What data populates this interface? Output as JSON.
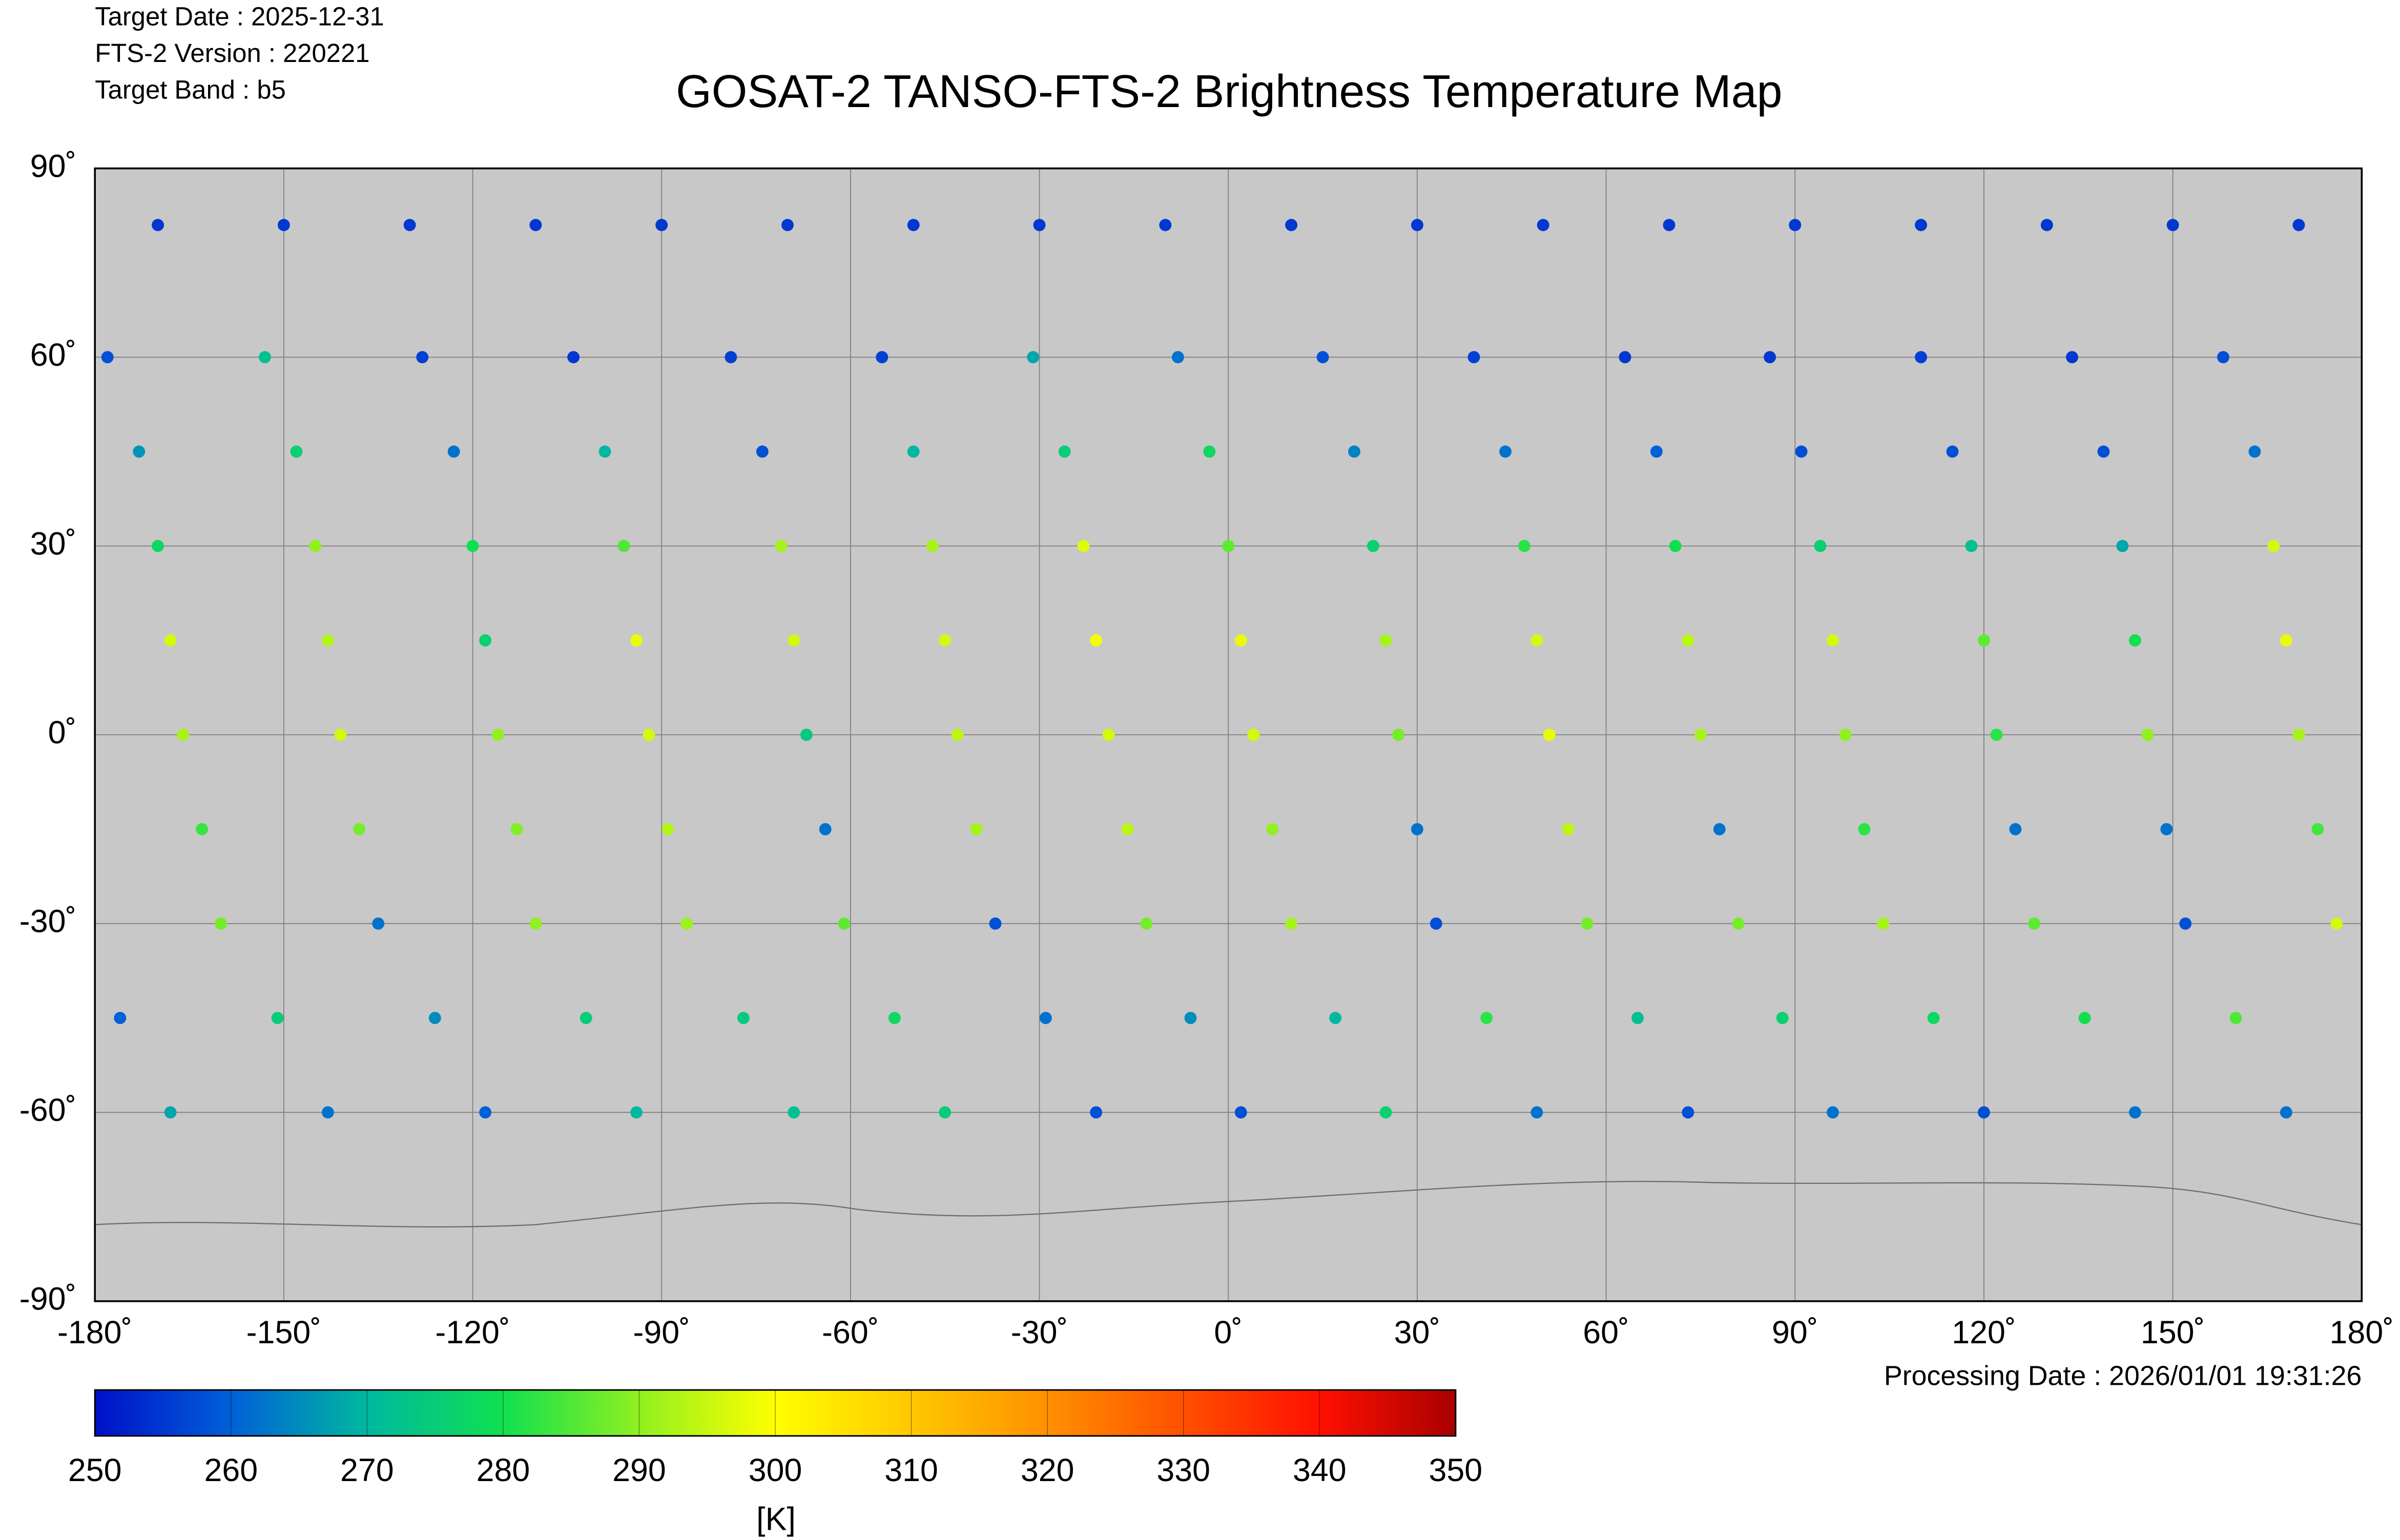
{
  "chart_data": {
    "type": "map",
    "header": [
      "Target Date   : 2025-12-31",
      "FTS-2 Version : 220221",
      "Target Band   : b5"
    ],
    "title": "GOSAT-2 TANSO-FTS-2 Brightness Temperature Map",
    "processing_date": "Processing Date : 2026/01/01 19:31:26",
    "xlim": [
      -180,
      180
    ],
    "ylim": [
      -90,
      90
    ],
    "xticks": [
      {
        "value": -180,
        "label": "-180˚"
      },
      {
        "value": -150,
        "label": "-150˚"
      },
      {
        "value": -120,
        "label": "-120˚"
      },
      {
        "value": -90,
        "label": "-90˚"
      },
      {
        "value": -60,
        "label": "-60˚"
      },
      {
        "value": -30,
        "label": "-30˚"
      },
      {
        "value": 0,
        "label": "0˚"
      },
      {
        "value": 30,
        "label": "30˚"
      },
      {
        "value": 60,
        "label": "60˚"
      },
      {
        "value": 90,
        "label": "90˚"
      },
      {
        "value": 120,
        "label": "120˚"
      },
      {
        "value": 150,
        "label": "150˚"
      },
      {
        "value": 180,
        "label": "180˚"
      }
    ],
    "yticks": [
      {
        "value": -90,
        "label": "-90˚"
      },
      {
        "value": -60,
        "label": "-60˚"
      },
      {
        "value": -30,
        "label": "-30˚"
      },
      {
        "value": 0,
        "label": "0˚"
      },
      {
        "value": 30,
        "label": "30˚"
      },
      {
        "value": 60,
        "label": "60˚"
      },
      {
        "value": 90,
        "label": "90˚"
      }
    ],
    "grid": true,
    "colorbar": {
      "lim": [
        250,
        350
      ],
      "ticks": [
        250,
        260,
        270,
        280,
        290,
        300,
        310,
        320,
        330,
        340,
        350
      ],
      "colors": [
        "#0010c8",
        "#0060d8",
        "#00b8a0",
        "#10e050",
        "#90f020",
        "#ffff00",
        "#ffc800",
        "#ff9000",
        "#ff5000",
        "#ff1000",
        "#a80000"
      ],
      "unit": "[K]"
    },
    "polar": {
      "lon": [
        -170,
        -150,
        -130,
        -110,
        -90,
        -70,
        -50,
        -30,
        -10,
        10,
        30,
        50,
        70,
        90,
        110,
        130,
        150,
        170
      ],
      "lat": [
        81,
        81,
        81,
        81,
        81,
        81,
        81,
        81,
        81,
        81,
        81,
        81,
        81,
        81,
        81,
        81,
        81,
        81
      ],
      "values": [
        255,
        255,
        255,
        255,
        255,
        255,
        255,
        255,
        255,
        255,
        255,
        255,
        255,
        255,
        255,
        255,
        255,
        255
      ]
    },
    "tracks": [
      {
        "lon": [
          -178,
          -173,
          -170,
          -168,
          -166,
          -163,
          -160,
          -176,
          -168
        ],
        "lat": [
          60,
          45,
          30,
          15,
          0,
          -15,
          -30,
          -45,
          -60
        ],
        "values": [
          258,
          266,
          278,
          296,
          292,
          283,
          288,
          260,
          268
        ]
      },
      {
        "lon": [
          -153,
          -148,
          -145,
          -143,
          -141,
          -138,
          -135,
          -151,
          -143
        ],
        "lat": [
          60,
          45,
          30,
          15,
          0,
          -15,
          -30,
          -45,
          -60
        ],
        "values": [
          272,
          276,
          290,
          293,
          296,
          288,
          262,
          275,
          262
        ]
      },
      {
        "lon": [
          -128,
          -123,
          -120,
          -118,
          -116,
          -113,
          -110,
          -126,
          -118
        ],
        "lat": [
          60,
          45,
          30,
          15,
          0,
          -15,
          -30,
          -45,
          -60
        ],
        "values": [
          256,
          262,
          280,
          276,
          290,
          289,
          290,
          265,
          260
        ]
      },
      {
        "lon": [
          -104,
          -99,
          -96,
          -94,
          -92,
          -89,
          -86,
          -102,
          -94
        ],
        "lat": [
          60,
          45,
          30,
          15,
          0,
          -15,
          -30,
          -45,
          -60
        ],
        "values": [
          255,
          270,
          285,
          298,
          296,
          293,
          291,
          275,
          270
        ]
      },
      {
        "lon": [
          -79,
          -74,
          -71,
          -69,
          -67,
          -64,
          -61,
          -77,
          -69
        ],
        "lat": [
          60,
          45,
          30,
          15,
          0,
          -15,
          -30,
          -45,
          -60
        ],
        "values": [
          256,
          258,
          292,
          296,
          274,
          262,
          286,
          274,
          272
        ]
      },
      {
        "lon": [
          -55,
          -50,
          -47,
          -45,
          -43,
          -40,
          -37,
          -53,
          -45
        ],
        "lat": [
          60,
          45,
          30,
          15,
          0,
          -15,
          -30,
          -45,
          -60
        ],
        "values": [
          256,
          270,
          292,
          296,
          294,
          292,
          258,
          278,
          275
        ]
      },
      {
        "lon": [
          -31,
          -26,
          -23,
          -21,
          -19,
          -16,
          -13,
          -29,
          -21
        ],
        "lat": [
          60,
          45,
          30,
          15,
          0,
          -15,
          -30,
          -45,
          -60
        ],
        "values": [
          268,
          275,
          297,
          299,
          296,
          294,
          288,
          262,
          258
        ]
      },
      {
        "lon": [
          -8,
          -3,
          0,
          2,
          4,
          7,
          10,
          -6,
          2
        ],
        "lat": [
          60,
          45,
          30,
          15,
          0,
          -15,
          -30,
          -45,
          -60
        ],
        "values": [
          262,
          278,
          286,
          298,
          296,
          290,
          292,
          265,
          258
        ]
      },
      {
        "lon": [
          15,
          20,
          23,
          25,
          27,
          30,
          33,
          17,
          25
        ],
        "lat": [
          60,
          45,
          30,
          15,
          0,
          -15,
          -30,
          -45,
          -60
        ],
        "values": [
          258,
          264,
          276,
          292,
          288,
          262,
          258,
          270,
          276
        ]
      },
      {
        "lon": [
          39,
          44,
          47,
          49,
          51,
          54,
          57,
          41,
          49
        ],
        "lat": [
          60,
          45,
          30,
          15,
          0,
          -15,
          -30,
          -45,
          -60
        ],
        "values": [
          256,
          262,
          282,
          296,
          298,
          294,
          288,
          282,
          262
        ]
      },
      {
        "lon": [
          63,
          68,
          71,
          73,
          75,
          78,
          81,
          65,
          73
        ],
        "lat": [
          60,
          45,
          30,
          15,
          0,
          -15,
          -30,
          -45,
          -60
        ],
        "values": [
          255,
          260,
          280,
          294,
          292,
          262,
          288,
          272,
          258
        ]
      },
      {
        "lon": [
          86,
          91,
          94,
          96,
          98,
          101,
          104,
          88,
          96
        ],
        "lat": [
          60,
          45,
          30,
          15,
          0,
          -15,
          -30,
          -45,
          -60
        ],
        "values": [
          255,
          258,
          276,
          296,
          290,
          282,
          292,
          276,
          262
        ]
      },
      {
        "lon": [
          110,
          115,
          118,
          120,
          122,
          125,
          128,
          112,
          120
        ],
        "lat": [
          60,
          45,
          30,
          15,
          0,
          -15,
          -30,
          -45,
          -60
        ],
        "values": [
          256,
          258,
          272,
          286,
          282,
          262,
          286,
          278,
          258
        ]
      },
      {
        "lon": [
          134,
          139,
          142,
          144,
          146,
          149,
          152,
          136,
          144
        ],
        "lat": [
          60,
          45,
          30,
          15,
          0,
          -15,
          -30,
          -45,
          -60
        ],
        "values": [
          255,
          258,
          268,
          280,
          290,
          262,
          258,
          280,
          262
        ]
      },
      {
        "lon": [
          158,
          163,
          166,
          168,
          170,
          173,
          176,
          160,
          168
        ],
        "lat": [
          60,
          45,
          30,
          15,
          0,
          -15,
          -30,
          -45,
          -60
        ],
        "values": [
          258,
          262,
          296,
          298,
          292,
          284,
          296,
          285,
          262
        ]
      }
    ]
  }
}
